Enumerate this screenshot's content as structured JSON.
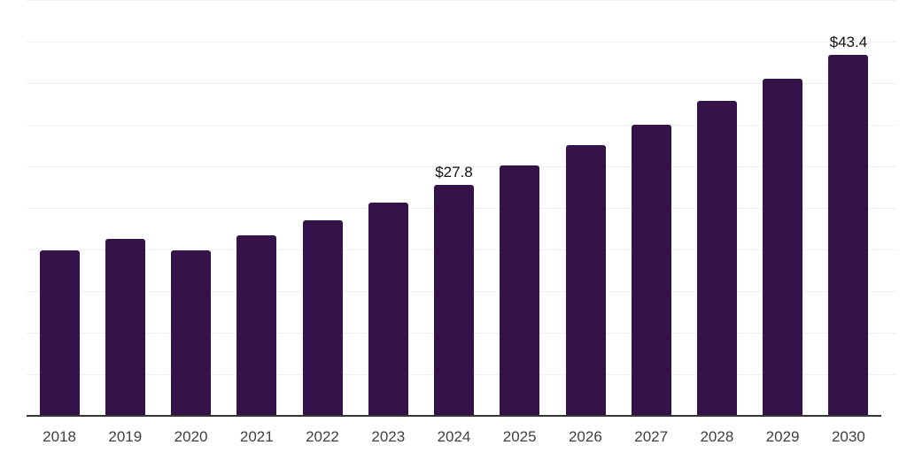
{
  "chart_data": {
    "type": "bar",
    "title": "",
    "xlabel": "",
    "ylabel": "",
    "categories": [
      "2018",
      "2019",
      "2020",
      "2021",
      "2022",
      "2023",
      "2024",
      "2025",
      "2026",
      "2027",
      "2028",
      "2029",
      "2030"
    ],
    "values": [
      19.9,
      21.3,
      19.9,
      21.7,
      23.5,
      25.6,
      27.8,
      30.1,
      32.6,
      35.0,
      37.9,
      40.5,
      43.4
    ],
    "data_labels": {
      "2024": "$27.8",
      "2030": "$43.4"
    },
    "ylim": [
      0,
      50
    ],
    "gridline_step": 5,
    "grid": true,
    "legend": "none",
    "colors": {
      "bar": "#35124a",
      "axis_line": "#363636",
      "gridline": "#efefef",
      "tick_label": "#404040",
      "data_label": "#111111",
      "background": "#ffffff"
    }
  }
}
